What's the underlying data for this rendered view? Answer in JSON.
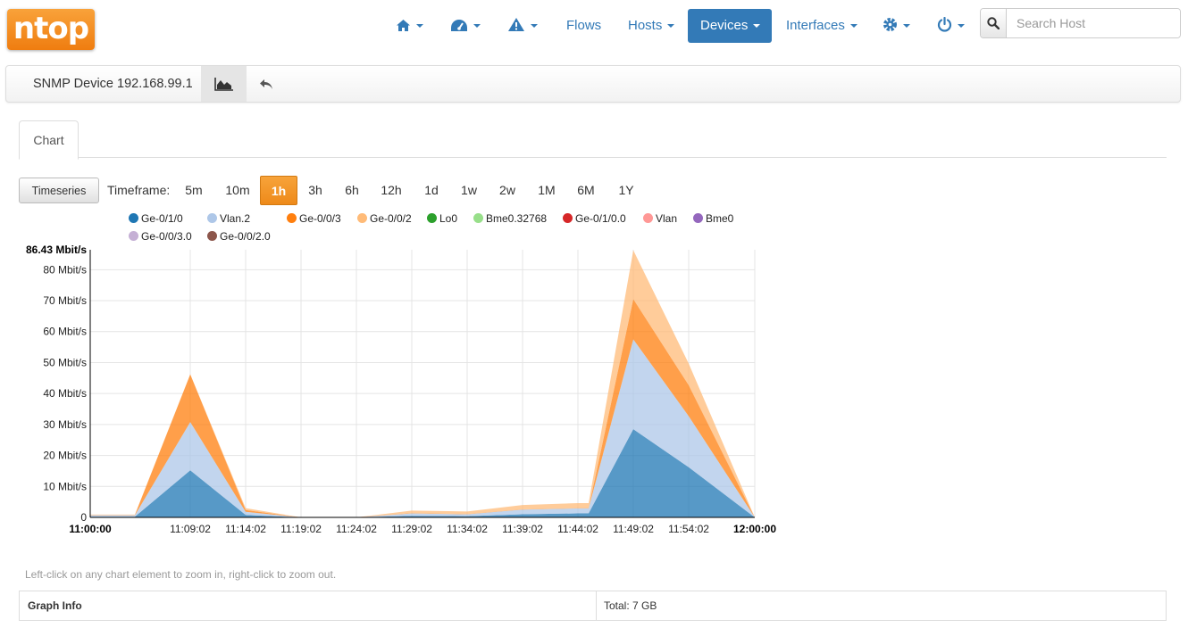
{
  "brand": {
    "logo_text": "ntop",
    "color": "#f39c1f"
  },
  "nav": {
    "home_icon": "home-icon",
    "dashboard_icon": "dashboard-icon",
    "alerts_icon": "warning-icon",
    "flows": "Flows",
    "hosts": "Hosts",
    "devices": "Devices",
    "interfaces": "Interfaces",
    "settings_icon": "gear-icon",
    "power_icon": "power-icon",
    "accent_color": "#337ab7"
  },
  "search": {
    "placeholder": "Search Host",
    "icon": "search-icon"
  },
  "subbar": {
    "title": "SNMP Device 192.168.99.1",
    "chart_icon": "area-chart-icon",
    "back_icon": "reply-icon"
  },
  "tabs": {
    "chart": "Chart"
  },
  "controls": {
    "timeseries_button": "Timeseries",
    "timeframe_label": "Timeframe:",
    "timeframes": [
      "5m",
      "10m",
      "1h",
      "3h",
      "6h",
      "12h",
      "1d",
      "1w",
      "2w",
      "1M",
      "6M",
      "1Y"
    ],
    "selected_timeframe": "1h",
    "selected_color": "#f0931f"
  },
  "chart_data": {
    "type": "area",
    "stacked": true,
    "x": [
      "11:00:00",
      "11:04:02",
      "11:09:02",
      "11:14:02",
      "11:19:02",
      "11:24:02",
      "11:29:02",
      "11:34:02",
      "11:39:02",
      "11:44:02",
      "11:45:00",
      "11:49:02",
      "11:54:02",
      "12:00:00"
    ],
    "x_tick_labels": [
      "11:00:00",
      "11:09:02",
      "11:14:02",
      "11:19:02",
      "11:24:02",
      "11:29:02",
      "11:34:02",
      "11:39:02",
      "11:44:02",
      "11:49:02",
      "11:54:02",
      "12:00:00"
    ],
    "y_tick_labels": [
      "0",
      "10 Mbit/s",
      "20 Mbit/s",
      "30 Mbit/s",
      "40 Mbit/s",
      "50 Mbit/s",
      "60 Mbit/s",
      "70 Mbit/s",
      "80 Mbit/s"
    ],
    "y_tick_values": [
      0,
      10,
      20,
      30,
      40,
      50,
      60,
      70,
      80
    ],
    "y_max_label": "86.43 Mbit/s",
    "ylim": [
      0,
      86.43
    ],
    "unit": "Mbit/s",
    "grid": true,
    "legend_position": "top",
    "series": [
      {
        "name": "Ge-0/1/0",
        "color": "#1f77b4",
        "values": [
          0.2,
          0.2,
          15.2,
          0.8,
          0,
          0,
          0.5,
          0.4,
          1.0,
          1.3,
          1.3,
          28.5,
          16.2,
          0
        ]
      },
      {
        "name": "Vlan.2",
        "color": "#aec7e8",
        "values": [
          0.5,
          0.5,
          15.6,
          1.0,
          0,
          0,
          0.8,
          0.6,
          1.5,
          1.6,
          1.6,
          29.0,
          16.5,
          0
        ]
      },
      {
        "name": "Ge-0/0/3",
        "color": "#ff7f0e",
        "values": [
          0.1,
          0.1,
          15.4,
          0.6,
          0,
          0,
          0.1,
          0.1,
          0.1,
          0.1,
          0.1,
          13.0,
          10.0,
          0
        ]
      },
      {
        "name": "Ge-0/0/2",
        "color": "#ffbb78",
        "values": [
          0.1,
          0.1,
          0,
          0.6,
          0,
          0,
          0.8,
          0.8,
          1.4,
          1.6,
          1.6,
          15.8,
          7.0,
          0
        ]
      },
      {
        "name": "Lo0",
        "color": "#2ca02c",
        "values": [
          0,
          0,
          0,
          0,
          0,
          0,
          0,
          0,
          0,
          0,
          0,
          0,
          0,
          0
        ]
      },
      {
        "name": "Bme0.32768",
        "color": "#98df8a",
        "values": [
          0,
          0,
          0,
          0,
          0,
          0,
          0,
          0,
          0,
          0,
          0,
          0,
          0,
          0
        ]
      },
      {
        "name": "Ge-0/1/0.0",
        "color": "#d62728",
        "values": [
          0,
          0,
          0,
          0,
          0,
          0,
          0,
          0,
          0,
          0,
          0,
          0,
          0,
          0
        ]
      },
      {
        "name": "Vlan",
        "color": "#ff9896",
        "values": [
          0,
          0,
          0,
          0,
          0,
          0,
          0,
          0,
          0,
          0,
          0,
          0,
          0,
          0
        ]
      },
      {
        "name": "Bme0",
        "color": "#9467bd",
        "values": [
          0,
          0,
          0,
          0,
          0,
          0,
          0,
          0,
          0,
          0,
          0,
          0,
          0,
          0
        ]
      },
      {
        "name": "Ge-0/0/3.0",
        "color": "#c5b0d5",
        "values": [
          0,
          0,
          0,
          0,
          0,
          0,
          0,
          0,
          0,
          0,
          0,
          0,
          0,
          0
        ]
      },
      {
        "name": "Ge-0/0/2.0",
        "color": "#8c564b",
        "values": [
          0,
          0,
          0,
          0,
          0,
          0,
          0,
          0,
          0,
          0,
          0,
          0,
          0,
          0
        ]
      }
    ]
  },
  "hint": "Left-click on any chart element to zoom in, right-click to zoom out.",
  "graph_info": {
    "label": "Graph Info",
    "total": "Total: 7 GB"
  }
}
